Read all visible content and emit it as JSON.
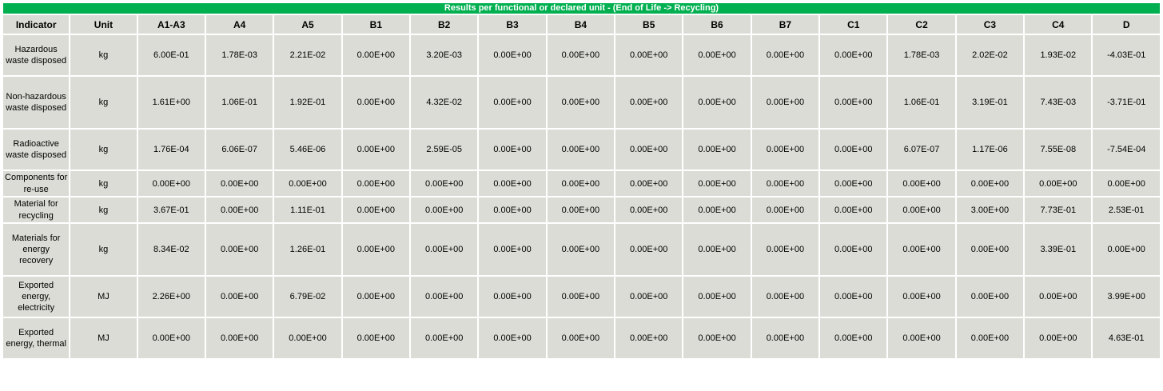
{
  "table": {
    "title": "Results per functional or declared unit - (End of Life -> Recycling)",
    "headers": [
      "Indicator",
      "Unit",
      "A1-A3",
      "A4",
      "A5",
      "B1",
      "B2",
      "B3",
      "B4",
      "B5",
      "B6",
      "B7",
      "C1",
      "C2",
      "C3",
      "C4",
      "D"
    ],
    "rows": [
      {
        "indicator": "Hazardous waste disposed",
        "unit": "kg",
        "values": [
          "6.00E-01",
          "1.78E-03",
          "2.21E-02",
          "0.00E+00",
          "3.20E-03",
          "0.00E+00",
          "0.00E+00",
          "0.00E+00",
          "0.00E+00",
          "0.00E+00",
          "0.00E+00",
          "1.78E-03",
          "2.02E-02",
          "1.93E-02",
          "-4.03E-01"
        ]
      },
      {
        "indicator": "Non-hazardous waste disposed",
        "unit": "kg",
        "values": [
          "1.61E+00",
          "1.06E-01",
          "1.92E-01",
          "0.00E+00",
          "4.32E-02",
          "0.00E+00",
          "0.00E+00",
          "0.00E+00",
          "0.00E+00",
          "0.00E+00",
          "0.00E+00",
          "1.06E-01",
          "3.19E-01",
          "7.43E-03",
          "-3.71E-01"
        ]
      },
      {
        "indicator": "Radioactive waste disposed",
        "unit": "kg",
        "values": [
          "1.76E-04",
          "6.06E-07",
          "5.46E-06",
          "0.00E+00",
          "2.59E-05",
          "0.00E+00",
          "0.00E+00",
          "0.00E+00",
          "0.00E+00",
          "0.00E+00",
          "0.00E+00",
          "6.07E-07",
          "1.17E-06",
          "7.55E-08",
          "-7.54E-04"
        ]
      },
      {
        "indicator": "Components for re-use",
        "unit": "kg",
        "values": [
          "0.00E+00",
          "0.00E+00",
          "0.00E+00",
          "0.00E+00",
          "0.00E+00",
          "0.00E+00",
          "0.00E+00",
          "0.00E+00",
          "0.00E+00",
          "0.00E+00",
          "0.00E+00",
          "0.00E+00",
          "0.00E+00",
          "0.00E+00",
          "0.00E+00"
        ]
      },
      {
        "indicator": "Material for recycling",
        "unit": "kg",
        "values": [
          "3.67E-01",
          "0.00E+00",
          "1.11E-01",
          "0.00E+00",
          "0.00E+00",
          "0.00E+00",
          "0.00E+00",
          "0.00E+00",
          "0.00E+00",
          "0.00E+00",
          "0.00E+00",
          "0.00E+00",
          "3.00E+00",
          "7.73E-01",
          "2.53E-01"
        ]
      },
      {
        "indicator": "Materials for energy recovery",
        "unit": "kg",
        "values": [
          "8.34E-02",
          "0.00E+00",
          "1.26E-01",
          "0.00E+00",
          "0.00E+00",
          "0.00E+00",
          "0.00E+00",
          "0.00E+00",
          "0.00E+00",
          "0.00E+00",
          "0.00E+00",
          "0.00E+00",
          "0.00E+00",
          "3.39E-01",
          "0.00E+00"
        ]
      },
      {
        "indicator": "Exported energy, electricity",
        "unit": "MJ",
        "values": [
          "2.26E+00",
          "0.00E+00",
          "6.79E-02",
          "0.00E+00",
          "0.00E+00",
          "0.00E+00",
          "0.00E+00",
          "0.00E+00",
          "0.00E+00",
          "0.00E+00",
          "0.00E+00",
          "0.00E+00",
          "0.00E+00",
          "0.00E+00",
          "3.99E+00"
        ]
      },
      {
        "indicator": "Exported energy, thermal",
        "unit": "MJ",
        "values": [
          "0.00E+00",
          "0.00E+00",
          "0.00E+00",
          "0.00E+00",
          "0.00E+00",
          "0.00E+00",
          "0.00E+00",
          "0.00E+00",
          "0.00E+00",
          "0.00E+00",
          "0.00E+00",
          "0.00E+00",
          "0.00E+00",
          "0.00E+00",
          "4.63E-01"
        ]
      }
    ]
  },
  "colors": {
    "title_bg": "#00b050",
    "title_text": "#ffffff",
    "cell_bg": "#dcdcd6"
  }
}
